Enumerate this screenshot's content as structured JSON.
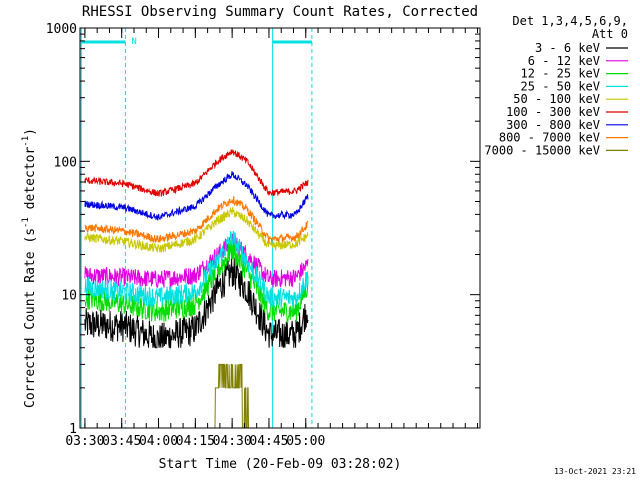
{
  "chart_data": {
    "type": "line",
    "title": "RHESSI Observing Summary Count Rates, Corrected",
    "xlabel": "Start Time (20-Feb-09 03:28:02)",
    "ylabel_main": "Corrected Count Rate (s",
    "ylabel_sup1": "-1",
    "ylabel_mid": " detector",
    "ylabel_sup2": "-1",
    "ylabel_end": ")",
    "yscale": "log",
    "ylim": [
      1,
      1000
    ],
    "xlim_min": [
      208,
      371
    ],
    "xticks": [
      {
        "min": 210,
        "label": "03:30"
      },
      {
        "min": 225,
        "label": "03:45"
      },
      {
        "min": 240,
        "label": "04:00"
      },
      {
        "min": 255,
        "label": "04:15"
      },
      {
        "min": 270,
        "label": "04:30"
      },
      {
        "min": 285,
        "label": "04:45"
      },
      {
        "min": 300,
        "label": "05:00"
      }
    ],
    "yticks": [
      {
        "value": 1,
        "label": "1"
      },
      {
        "value": 10,
        "label": "10"
      },
      {
        "value": 100,
        "label": "100"
      },
      {
        "value": 1000,
        "label": "1000"
      }
    ],
    "legend_header": [
      "Det 1,3,4,5,6,9,",
      "Att 0"
    ],
    "legend_position": "right",
    "night_markers_min": [
      208.5,
      226.5,
      286.5,
      302.5
    ],
    "night_bar_label": "N",
    "series": [
      {
        "name": "3 - 6 keV",
        "color": "#000000",
        "base": 6,
        "peak": 15,
        "noise": 0.28,
        "floor": 4,
        "points": [
          [
            210,
            6
          ],
          [
            226,
            5.8
          ],
          [
            240,
            4.6
          ],
          [
            255,
            5.5
          ],
          [
            264,
            11
          ],
          [
            270,
            15
          ],
          [
            276,
            11
          ],
          [
            285,
            5
          ],
          [
            296,
            5
          ],
          [
            301,
            8
          ]
        ]
      },
      {
        "name": "6 - 12 keV",
        "color": "#e000e0",
        "base": 14,
        "peak": 25,
        "noise": 0.16,
        "points": [
          [
            210,
            14
          ],
          [
            226,
            13.5
          ],
          [
            240,
            13
          ],
          [
            255,
            14
          ],
          [
            264,
            20
          ],
          [
            270,
            25
          ],
          [
            276,
            20
          ],
          [
            285,
            13
          ],
          [
            296,
            13.5
          ],
          [
            301,
            17
          ]
        ]
      },
      {
        "name": "12 - 25 keV",
        "color": "#00dd00",
        "base": 9,
        "peak": 22,
        "noise": 0.2,
        "points": [
          [
            210,
            9.5
          ],
          [
            226,
            8.5
          ],
          [
            240,
            7.5
          ],
          [
            255,
            8.5
          ],
          [
            264,
            15
          ],
          [
            270,
            22
          ],
          [
            276,
            15
          ],
          [
            285,
            7.5
          ],
          [
            296,
            7.5
          ],
          [
            301,
            12
          ]
        ]
      },
      {
        "name": "25 - 50 keV",
        "color": "#00e0e0",
        "base": 11,
        "peak": 27,
        "noise": 0.18,
        "points": [
          [
            210,
            11.5
          ],
          [
            226,
            10.5
          ],
          [
            240,
            9.5
          ],
          [
            255,
            10.5
          ],
          [
            264,
            18
          ],
          [
            270,
            27
          ],
          [
            276,
            18
          ],
          [
            285,
            9.5
          ],
          [
            296,
            9.5
          ],
          [
            301,
            14
          ]
        ]
      },
      {
        "name": "50 - 100 keV",
        "color": "#c8c800",
        "base": 25,
        "peak": 42,
        "noise": 0.08,
        "points": [
          [
            210,
            27
          ],
          [
            226,
            25
          ],
          [
            240,
            22
          ],
          [
            255,
            26
          ],
          [
            264,
            36
          ],
          [
            270,
            42
          ],
          [
            276,
            36
          ],
          [
            285,
            23
          ],
          [
            296,
            24
          ],
          [
            301,
            28
          ]
        ]
      },
      {
        "name": "100 - 300 keV",
        "color": "#e00000",
        "base": 72,
        "peak": 120,
        "noise": 0.06,
        "points": [
          [
            210,
            72
          ],
          [
            226,
            68
          ],
          [
            240,
            57
          ],
          [
            255,
            68
          ],
          [
            264,
            100
          ],
          [
            270,
            120
          ],
          [
            276,
            100
          ],
          [
            285,
            58
          ],
          [
            296,
            60
          ],
          [
            301,
            70
          ]
        ]
      },
      {
        "name": "300 - 800 keV",
        "color": "#0000e0",
        "base": 48,
        "peak": 80,
        "noise": 0.06,
        "points": [
          [
            210,
            48
          ],
          [
            226,
            45
          ],
          [
            240,
            38
          ],
          [
            255,
            46
          ],
          [
            264,
            66
          ],
          [
            270,
            80
          ],
          [
            276,
            66
          ],
          [
            285,
            39
          ],
          [
            296,
            40
          ],
          [
            301,
            55
          ]
        ]
      },
      {
        "name": "800 - 7000 keV",
        "color": "#ff7700",
        "base": 32,
        "peak": 52,
        "noise": 0.07,
        "points": [
          [
            210,
            32
          ],
          [
            226,
            30
          ],
          [
            240,
            26
          ],
          [
            255,
            30
          ],
          [
            264,
            44
          ],
          [
            270,
            52
          ],
          [
            276,
            44
          ],
          [
            285,
            26
          ],
          [
            296,
            27
          ],
          [
            301,
            34
          ]
        ]
      },
      {
        "name": "7000 - 15000 keV",
        "color": "#808000",
        "base": 1,
        "peak": 3,
        "noise": 0,
        "points": [
          [
            263,
            1
          ],
          [
            264,
            2
          ],
          [
            266,
            3
          ],
          [
            272,
            3
          ],
          [
            274,
            2
          ],
          [
            277,
            1
          ]
        ]
      }
    ]
  },
  "footer": {
    "timestamp": "13-Oct-2021 23:21"
  }
}
